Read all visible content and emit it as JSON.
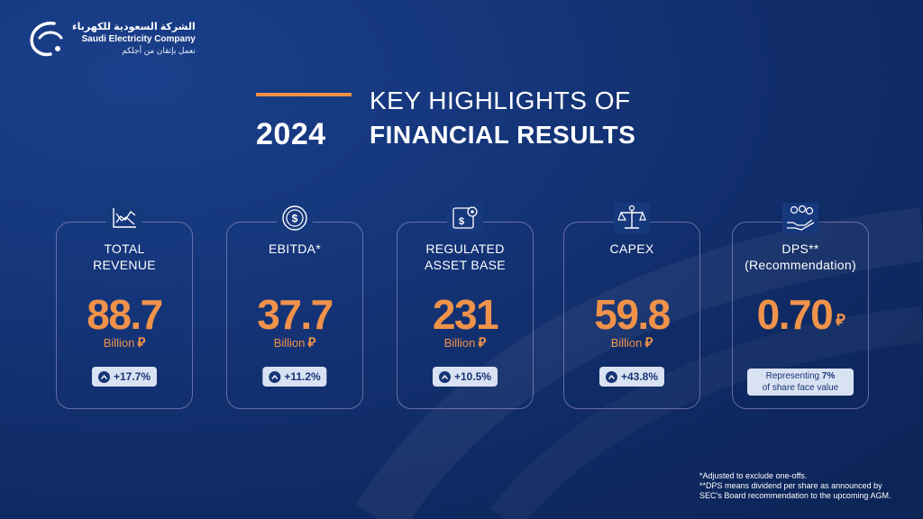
{
  "logo": {
    "arabic": "الشركة السعودية للكهرباء",
    "english": "Saudi Electricity Company",
    "tagline": "نعمل بإتقان من أجلكم"
  },
  "title": {
    "year": "2024",
    "line1": "KEY HIGHLIGHTS OF",
    "line2": "FINANCIAL RESULTS"
  },
  "colors": {
    "accent": "#f0924a",
    "background": "#13337a",
    "badge": "#d9e2f2"
  },
  "cards": [
    {
      "icon": "chart-trend-icon",
      "label_1": "TOTAL",
      "label_2": "REVENUE",
      "value": "88.7",
      "unit": "Billion",
      "currency": "⃁",
      "change": "+17.7%"
    },
    {
      "icon": "coin-dollar-icon",
      "label_1": "EBITDA*",
      "label_2": "",
      "value": "37.7",
      "unit": "Billion",
      "currency": "⃁",
      "change": "+11.2%"
    },
    {
      "icon": "gear-dollar-icon",
      "label_1": "REGULATED",
      "label_2": "ASSET BASE",
      "value": "231",
      "unit": "Billion",
      "currency": "⃁",
      "change": "+10.5%"
    },
    {
      "icon": "balance-scale-icon",
      "label_1": "CAPEX",
      "label_2": "",
      "value": "59.8",
      "unit": "Billion",
      "currency": "⃁",
      "change": "+43.8%"
    },
    {
      "icon": "hand-coins-icon",
      "label_1": "DPS**",
      "label_2": "(Recommendation)",
      "value": "0.70",
      "currency": "⃁",
      "note_pre": "Representing ",
      "note_bold": "7%",
      "note_post": "of share face value"
    }
  ],
  "footnotes": [
    "*Adjusted to exclude one-offs.",
    "**DPS means dividend per share as announced by",
    "SEC’s Board recommendation to the upcoming AGM."
  ]
}
